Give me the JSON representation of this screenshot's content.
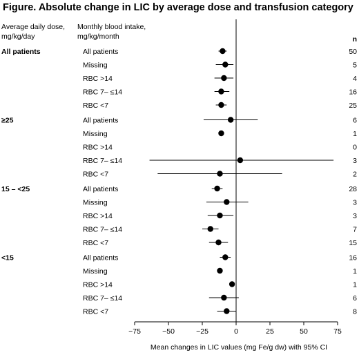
{
  "title": "Figure. Absolute change in LIC by average dose and transfusion category",
  "headers": {
    "dose_line1": "Average daily dose,",
    "dose_line2": "mg/kg/day",
    "intake_line1": "Monthly blood intake,",
    "intake_line2": "mg/kg/month",
    "n": "n"
  },
  "chart_data": {
    "type": "forest",
    "title": "Figure. Absolute change in LIC by average dose and transfusion category",
    "xlabel": "Mean changes in LIC values (mg Fe/g dw) with 95% CI",
    "xlim": [
      -75,
      75
    ],
    "xticks": [
      -75,
      -50,
      -25,
      0,
      25,
      50,
      75
    ],
    "xtick_labels": [
      "−75",
      "−50",
      "−25",
      "0",
      "25",
      "50",
      "75"
    ],
    "reference_line": 0,
    "groups": [
      {
        "dose": "All patients",
        "rows": [
          {
            "label": "All patients",
            "mean": -10,
            "lo": -13,
            "hi": -7,
            "n": 50
          },
          {
            "label": "Missing",
            "mean": -8,
            "lo": -15,
            "hi": -2,
            "n": 5
          },
          {
            "label": "RBC >14",
            "mean": -9,
            "lo": -16,
            "hi": -2,
            "n": 4
          },
          {
            "label": "RBC 7– ≤14",
            "mean": -11,
            "lo": -16,
            "hi": -5,
            "n": 16
          },
          {
            "label": "RBC <7",
            "mean": -11,
            "lo": -15,
            "hi": -7,
            "n": 25
          }
        ]
      },
      {
        "dose": "≥25",
        "rows": [
          {
            "label": "All patients",
            "mean": -4,
            "lo": -24,
            "hi": 16,
            "n": 6
          },
          {
            "label": "Missing",
            "mean": -11,
            "lo": null,
            "hi": null,
            "n": 1
          },
          {
            "label": "RBC >14",
            "mean": null,
            "lo": null,
            "hi": null,
            "n": 0
          },
          {
            "label": "RBC 7– ≤14",
            "mean": 3,
            "lo": -64,
            "hi": 72,
            "n": 3
          },
          {
            "label": "RBC <7",
            "mean": -12,
            "lo": -58,
            "hi": 34,
            "n": 2
          }
        ]
      },
      {
        "dose": "15 – <25",
        "rows": [
          {
            "label": "All patients",
            "mean": -14,
            "lo": -18,
            "hi": -10,
            "n": 28
          },
          {
            "label": "Missing",
            "mean": -7,
            "lo": -22,
            "hi": 9,
            "n": 3
          },
          {
            "label": "RBC >14",
            "mean": -12,
            "lo": -21,
            "hi": -2,
            "n": 3
          },
          {
            "label": "RBC 7– ≤14",
            "mean": -19,
            "lo": -25,
            "hi": -13,
            "n": 7
          },
          {
            "label": "RBC <7",
            "mean": -13,
            "lo": -20,
            "hi": -6,
            "n": 15
          }
        ]
      },
      {
        "dose": "<15",
        "rows": [
          {
            "label": "All patients",
            "mean": -8,
            "lo": -12,
            "hi": -4,
            "n": 16
          },
          {
            "label": "Missing",
            "mean": -12,
            "lo": null,
            "hi": null,
            "n": 1
          },
          {
            "label": "RBC >14",
            "mean": -3,
            "lo": null,
            "hi": null,
            "n": 1
          },
          {
            "label": "RBC 7– ≤14",
            "mean": -9,
            "lo": -20,
            "hi": 2,
            "n": 6
          },
          {
            "label": "RBC <7",
            "mean": -7,
            "lo": -14,
            "hi": 0,
            "n": 8
          }
        ]
      }
    ]
  }
}
